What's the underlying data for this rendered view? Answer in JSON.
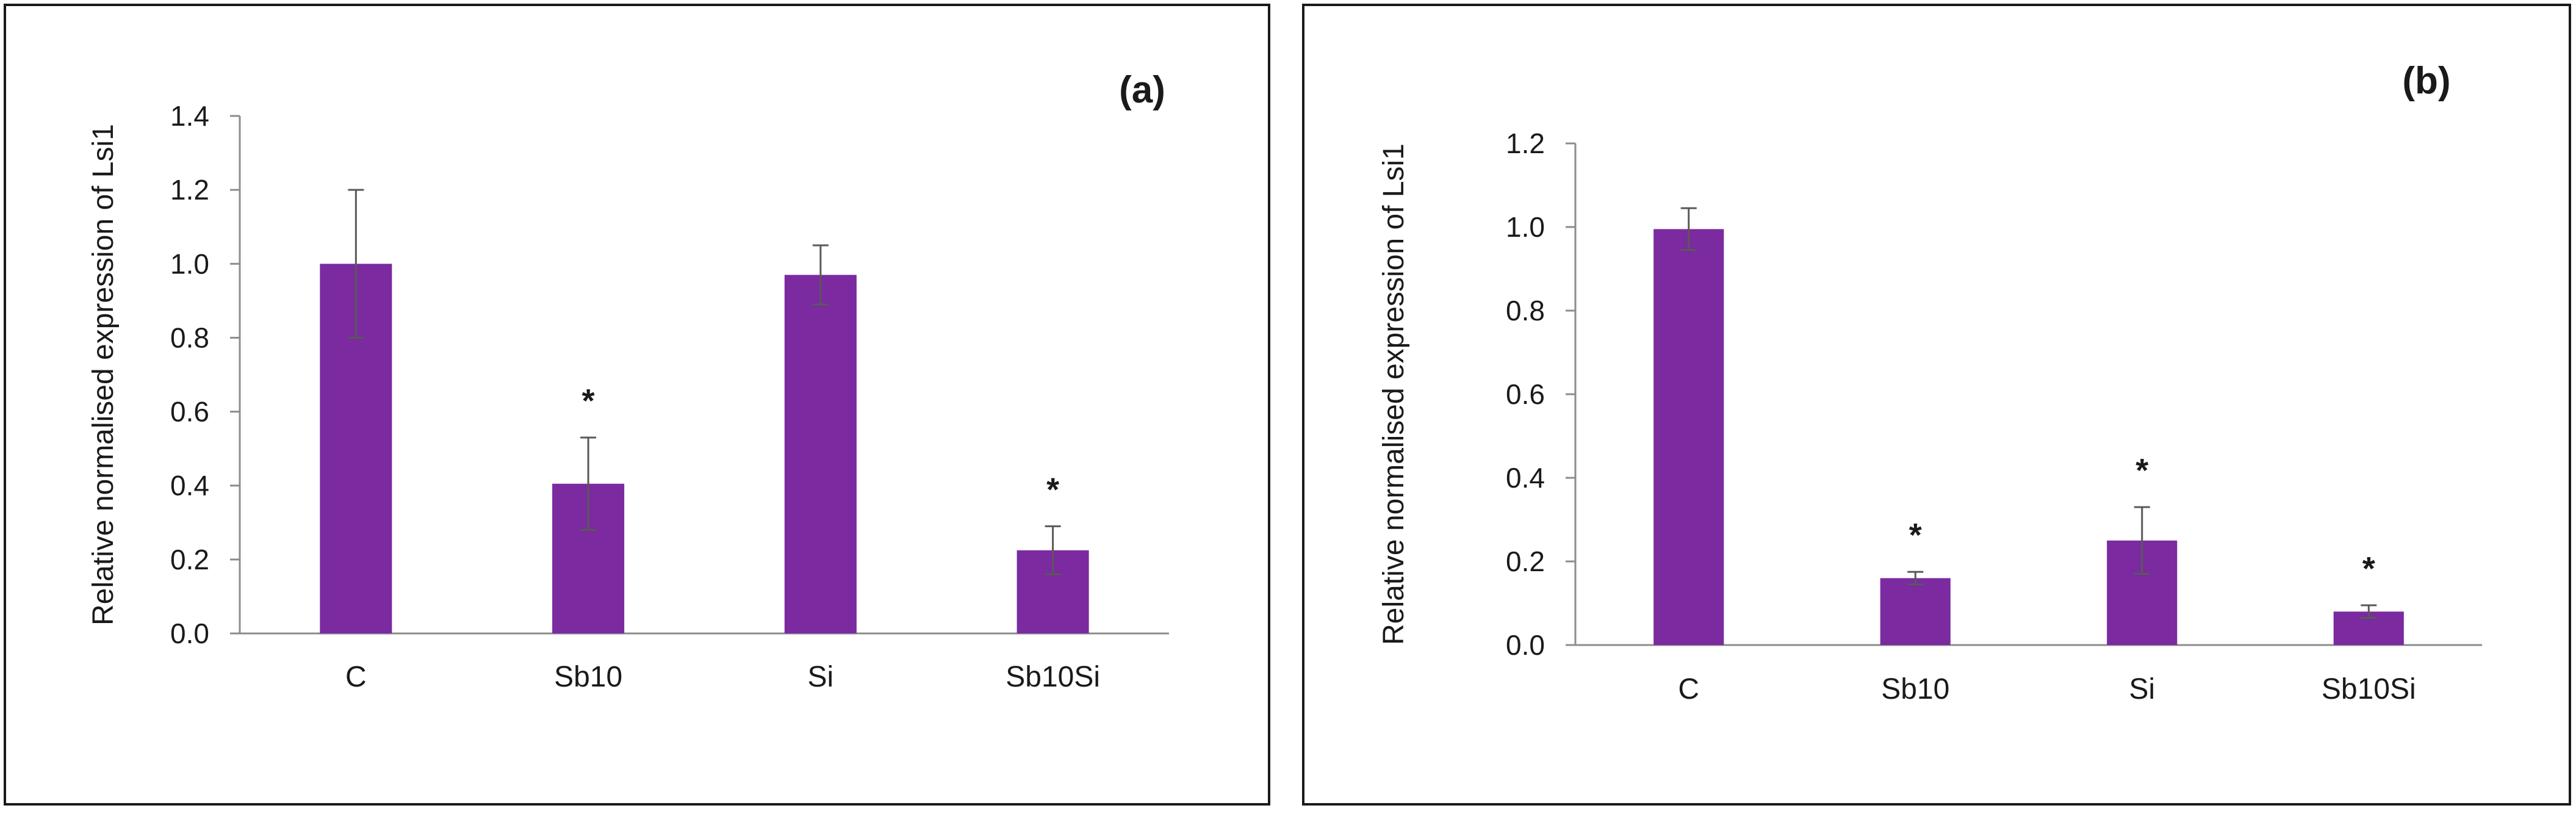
{
  "chart_data": [
    {
      "type": "bar",
      "panel_label": "(a)",
      "ylabel": "Relative normalised expression of Lsi1",
      "xlabel": "",
      "categories": [
        "C",
        "Sb10",
        "Si",
        "Sb10Si"
      ],
      "values": [
        1.0,
        0.405,
        0.97,
        0.225
      ],
      "error": [
        0.2,
        0.125,
        0.08,
        0.065
      ],
      "significance": [
        "",
        "*",
        "",
        "*"
      ],
      "ylim": [
        0,
        1.4
      ],
      "yticks": [
        "0.0",
        "0.2",
        "0.4",
        "0.6",
        "0.8",
        "1.0",
        "1.2",
        "1.4"
      ],
      "grid": false,
      "bar_color": "#7B2AA0"
    },
    {
      "type": "bar",
      "panel_label": "(b)",
      "ylabel": "Relative normalised expression of Lsi1",
      "xlabel": "",
      "categories": [
        "C",
        "Sb10",
        "Si",
        "Sb10Si"
      ],
      "values": [
        0.995,
        0.16,
        0.25,
        0.08
      ],
      "error": [
        0.05,
        0.015,
        0.08,
        0.015
      ],
      "significance": [
        "",
        "*",
        "*",
        "*"
      ],
      "ylim": [
        0,
        1.2
      ],
      "yticks": [
        "0.0",
        "0.2",
        "0.4",
        "0.6",
        "0.8",
        "1.0",
        "1.2"
      ],
      "grid": false,
      "bar_color": "#7B2AA0"
    }
  ]
}
